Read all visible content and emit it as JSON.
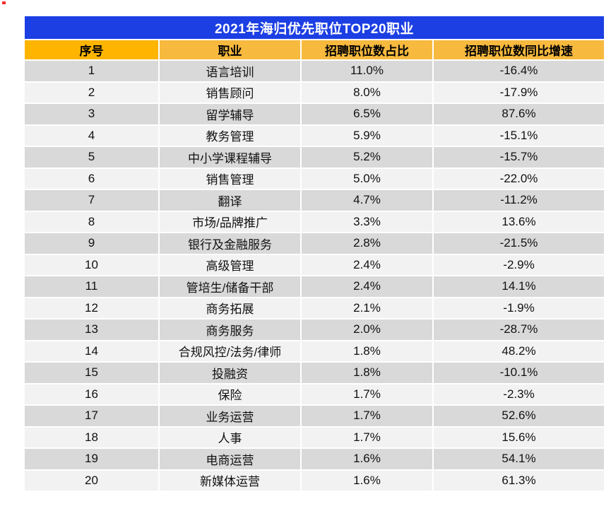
{
  "colors": {
    "title_bg": "#1c3fe3",
    "title_text": "#ffffff",
    "header_bg_first": "#ffb400",
    "header_bg": "#f7b93e",
    "row_odd_bg": "#d9d9d9",
    "row_even_bg": "#f2f2f2",
    "body_text": "#111111",
    "grid_line": "#ffffff",
    "corner_mark": "#ff2b2b"
  },
  "chart_data": {
    "type": "table",
    "title": "2021年海归优先职位TOP20职业",
    "columns": [
      "序号",
      "职业",
      "招聘职位数占比",
      "招聘职位数同比增速"
    ],
    "rows": [
      [
        "1",
        "语言培训",
        "11.0%",
        "-16.4%"
      ],
      [
        "2",
        "销售顾问",
        "8.0%",
        "-17.9%"
      ],
      [
        "3",
        "留学辅导",
        "6.5%",
        "87.6%"
      ],
      [
        "4",
        "教务管理",
        "5.9%",
        "-15.1%"
      ],
      [
        "5",
        "中小学课程辅导",
        "5.2%",
        "-15.7%"
      ],
      [
        "6",
        "销售管理",
        "5.0%",
        "-22.0%"
      ],
      [
        "7",
        "翻译",
        "4.7%",
        "-11.2%"
      ],
      [
        "8",
        "市场/品牌推广",
        "3.3%",
        "13.6%"
      ],
      [
        "9",
        "银行及金融服务",
        "2.8%",
        "-21.5%"
      ],
      [
        "10",
        "高级管理",
        "2.4%",
        "-2.9%"
      ],
      [
        "11",
        "管培生/储备干部",
        "2.4%",
        "14.1%"
      ],
      [
        "12",
        "商务拓展",
        "2.1%",
        "-1.9%"
      ],
      [
        "13",
        "商务服务",
        "2.0%",
        "-28.7%"
      ],
      [
        "14",
        "合规风控/法务/律师",
        "1.8%",
        "48.2%"
      ],
      [
        "15",
        "投融资",
        "1.8%",
        "-10.1%"
      ],
      [
        "16",
        "保险",
        "1.7%",
        "-2.3%"
      ],
      [
        "17",
        "业务运营",
        "1.7%",
        "52.6%"
      ],
      [
        "18",
        "人事",
        "1.7%",
        "15.6%"
      ],
      [
        "19",
        "电商运营",
        "1.6%",
        "54.1%"
      ],
      [
        "20",
        "新媒体运营",
        "1.6%",
        "61.3%"
      ]
    ]
  }
}
